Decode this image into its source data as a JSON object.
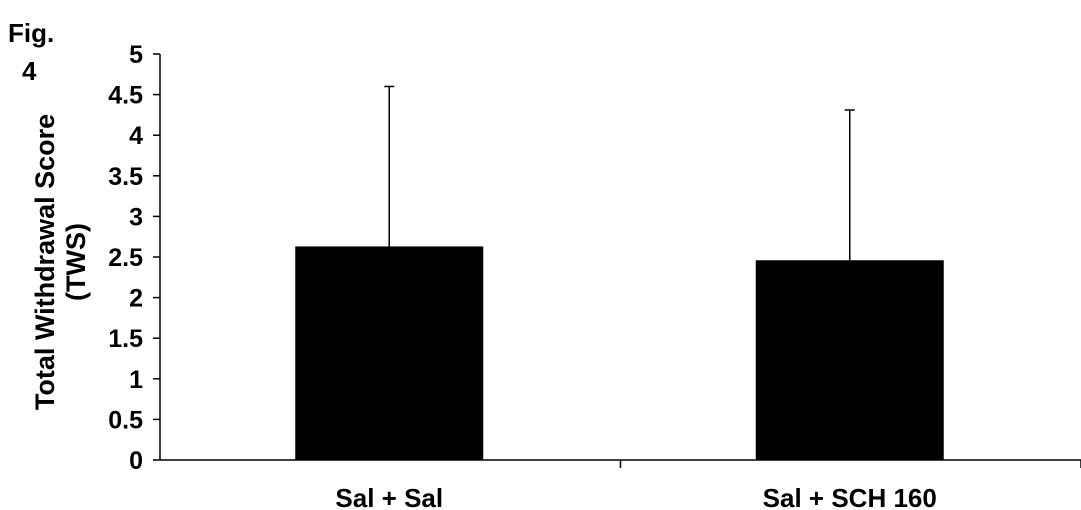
{
  "figure_label": {
    "line1": "Fig.",
    "line2": "4"
  },
  "chart_data": {
    "type": "bar",
    "categories": [
      "Sal + Sal",
      "Sal + SCH 160"
    ],
    "values": [
      2.63,
      2.46
    ],
    "error_upper": [
      4.6,
      4.31
    ],
    "title": "",
    "xlabel": "",
    "ylabel_lines": [
      "Total Withdrawal Score",
      "(TWS)"
    ],
    "ylim": [
      0,
      5
    ],
    "yticks": [
      "0",
      "0.5",
      "1",
      "1.5",
      "2",
      "2.5",
      "3",
      "3.5",
      "4",
      "4.5",
      "5"
    ],
    "grid": false,
    "legend": "none",
    "bar_color": "#000000"
  }
}
